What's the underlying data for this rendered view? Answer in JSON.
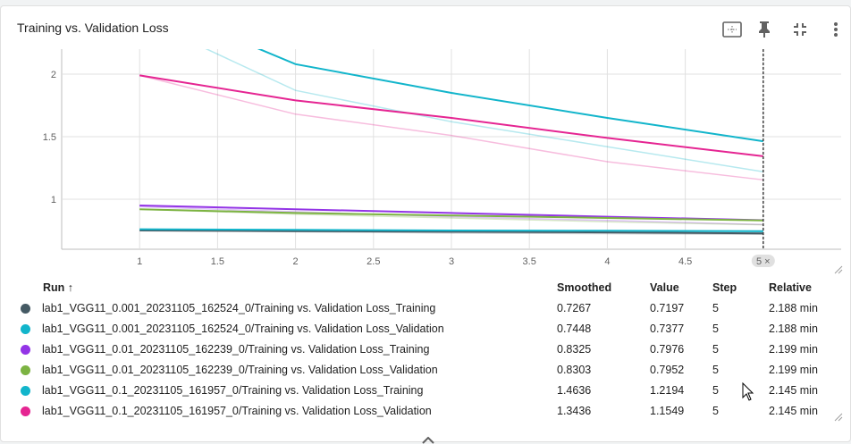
{
  "card": {
    "title": "Training vs. Validation Loss"
  },
  "toolbar": {
    "icons": [
      "fit-to-data-icon",
      "pin-icon",
      "fullscreen-exit-icon",
      "more-vert-icon"
    ]
  },
  "chart_data": {
    "type": "line",
    "title": "Training vs. Validation Loss",
    "xlabel": "",
    "ylabel": "",
    "x_ticks": [
      "1",
      "1.5",
      "2",
      "2.5",
      "3",
      "3.5",
      "4",
      "4.5",
      "5 ×"
    ],
    "y_ticks": [
      "1",
      "1.5",
      "2"
    ],
    "xlim": [
      0.5,
      5.5
    ],
    "ylim": [
      0.6,
      2.2
    ],
    "grid": true,
    "cursor_step": 5,
    "cursor_label": "5 ×",
    "x": [
      1,
      2,
      3,
      4,
      5
    ],
    "series": [
      {
        "name": "lab1_VGG11_0.001_20231105_162524_0/Training vs. Validation Loss_Training",
        "color": "#455a64",
        "raw": [
          0.75,
          0.74,
          0.73,
          0.725,
          0.7197
        ],
        "smoothed": [
          0.75,
          0.745,
          0.74,
          0.735,
          0.7267
        ]
      },
      {
        "name": "lab1_VGG11_0.001_20231105_162524_0/Training vs. Validation Loss_Validation",
        "color": "#12b5cb",
        "raw": [
          0.76,
          0.75,
          0.745,
          0.74,
          0.7377
        ],
        "smoothed": [
          0.76,
          0.755,
          0.75,
          0.748,
          0.7448
        ]
      },
      {
        "name": "lab1_VGG11_0.01_20231105_162239_0/Training vs. Validation Loss_Training",
        "color": "#9334e6",
        "raw": [
          0.94,
          0.9,
          0.86,
          0.83,
          0.7976
        ],
        "smoothed": [
          0.95,
          0.92,
          0.89,
          0.86,
          0.8325
        ]
      },
      {
        "name": "lab1_VGG11_0.01_20231105_162239_0/Training vs. Validation Loss_Validation",
        "color": "#7cb342",
        "raw": [
          0.92,
          0.88,
          0.85,
          0.82,
          0.7952
        ],
        "smoothed": [
          0.92,
          0.89,
          0.87,
          0.85,
          0.8303
        ]
      },
      {
        "name": "lab1_VGG11_0.1_20231105_161957_0/Training vs. Validation Loss_Training",
        "color": "#12b5cb",
        "raw": [
          2.45,
          1.87,
          1.62,
          1.42,
          1.2194
        ],
        "smoothed": [
          2.6,
          2.08,
          1.85,
          1.65,
          1.4636
        ]
      },
      {
        "name": "lab1_VGG11_0.1_20231105_161957_0/Training vs. Validation Loss_Validation",
        "color": "#e52592",
        "raw": [
          1.99,
          1.68,
          1.51,
          1.3,
          1.1549
        ],
        "smoothed": [
          1.99,
          1.79,
          1.65,
          1.49,
          1.3436
        ]
      }
    ]
  },
  "table": {
    "headers": {
      "run": "Run ↑",
      "smoothed": "Smoothed",
      "value": "Value",
      "step": "Step",
      "relative": "Relative"
    },
    "rows": [
      {
        "color": "#455a64",
        "run": "lab1_VGG11_0.001_20231105_162524_0/Training vs. Validation Loss_Training",
        "smoothed": "0.7267",
        "value": "0.7197",
        "step": "5",
        "relative": "2.188 min"
      },
      {
        "color": "#12b5cb",
        "run": "lab1_VGG11_0.001_20231105_162524_0/Training vs. Validation Loss_Validation",
        "smoothed": "0.7448",
        "value": "0.7377",
        "step": "5",
        "relative": "2.188 min"
      },
      {
        "color": "#9334e6",
        "run": "lab1_VGG11_0.01_20231105_162239_0/Training vs. Validation Loss_Training",
        "smoothed": "0.8325",
        "value": "0.7976",
        "step": "5",
        "relative": "2.199 min"
      },
      {
        "color": "#7cb342",
        "run": "lab1_VGG11_0.01_20231105_162239_0/Training vs. Validation Loss_Validation",
        "smoothed": "0.8303",
        "value": "0.7952",
        "step": "5",
        "relative": "2.199 min"
      },
      {
        "color": "#12b5cb",
        "run": "lab1_VGG11_0.1_20231105_161957_0/Training vs. Validation Loss_Training",
        "smoothed": "1.4636",
        "value": "1.2194",
        "step": "5",
        "relative": "2.145 min"
      },
      {
        "color": "#e52592",
        "run": "lab1_VGG11_0.1_20231105_161957_0/Training vs. Validation Loss_Validation",
        "smoothed": "1.3436",
        "value": "1.1549",
        "step": "5",
        "relative": "2.145 min"
      }
    ]
  }
}
